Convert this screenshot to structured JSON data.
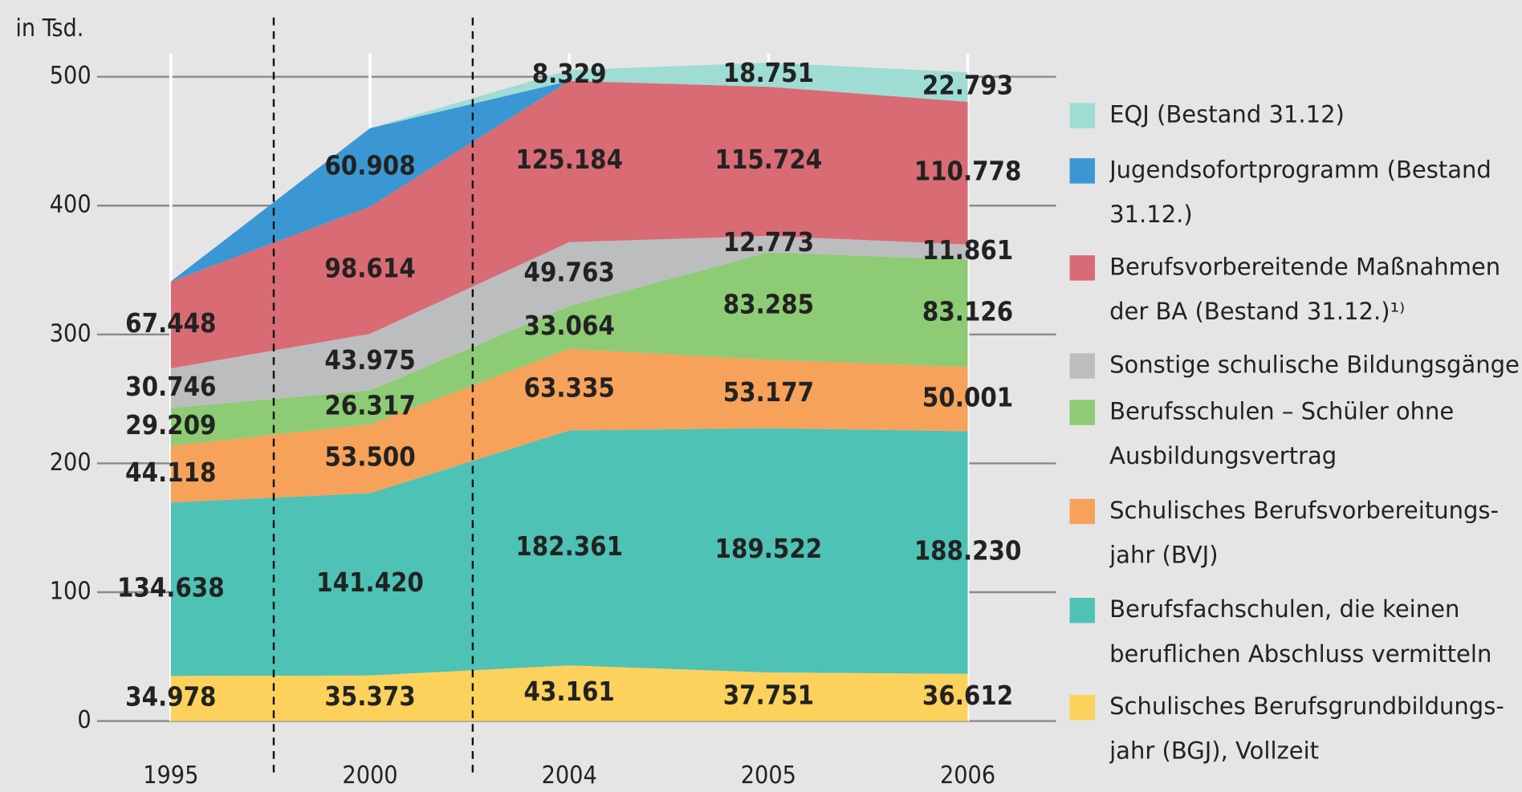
{
  "chart_data": {
    "type": "stacked_area",
    "y_axis_label": "in Tsd.",
    "categories": [
      "1995",
      "2000",
      "2004",
      "2005",
      "2006"
    ],
    "ylim": [
      0,
      500
    ],
    "yticks": [
      0,
      100,
      200,
      300,
      400,
      500
    ],
    "grid": true,
    "legend": "right",
    "series": [
      {
        "name": "Schulisches Berufsgrundbildungs-jahr (BGJ), Vollzeit",
        "color": "#fcd25c",
        "values": [
          34.978,
          35.373,
          43.161,
          37.751,
          36.612
        ],
        "value_labels": [
          "34.978",
          "35.373",
          "43.161",
          "37.751",
          "36.612"
        ]
      },
      {
        "name": "Berufsfachschulen, die keinen beruflichen Abschluss vermitteln",
        "color": "#4ec2b5",
        "values": [
          134.638,
          141.42,
          182.361,
          189.522,
          188.23
        ],
        "value_labels": [
          "134.638",
          "141.420",
          "182.361",
          "189.522",
          "188.230"
        ]
      },
      {
        "name": "Schulisches Berufsvorbereitungs-jahr (BVJ)",
        "color": "#f6a25a",
        "values": [
          44.118,
          53.5,
          63.335,
          53.177,
          50.001
        ],
        "value_labels": [
          "44.118",
          "53.500",
          "63.335",
          "53.177",
          "50.001"
        ]
      },
      {
        "name": "Berufsschulen – Schüler ohne Ausbildungsvertrag",
        "color": "#8dcb74",
        "values": [
          29.209,
          26.317,
          33.064,
          83.285,
          83.126
        ],
        "value_labels": [
          "29.209",
          "26.317",
          "33.064",
          "83.285",
          "83.126"
        ]
      },
      {
        "name": "Sonstige schulische Bildungsgänge",
        "color": "#bcbdbf",
        "values": [
          30.746,
          43.975,
          49.763,
          12.773,
          11.861
        ],
        "value_labels": [
          "30.746",
          "43.975",
          "49.763",
          "12.773",
          "11.861"
        ]
      },
      {
        "name": "Berufsvorbereitende Maßnahmen der BA (Bestand 31.12.)¹⁾",
        "color": "#d86b74",
        "values": [
          67.448,
          98.614,
          125.184,
          115.724,
          110.778
        ],
        "value_labels": [
          "67.448",
          "98.614",
          "125.184",
          "115.724",
          "110.778"
        ]
      },
      {
        "name": "Jugendsofortprogramm (Bestand 31.12.)",
        "color": "#3b97d3",
        "values": [
          0,
          60.908,
          0,
          null,
          null
        ],
        "value_labels": [
          null,
          "60.908",
          null,
          null,
          null
        ]
      },
      {
        "name": "EQJ (Bestand 31.12)",
        "color": "#9fdcd3",
        "values": [
          null,
          0,
          8.329,
          18.751,
          22.793
        ],
        "value_labels": [
          null,
          null,
          "8.329",
          "18.751",
          "22.793"
        ]
      }
    ]
  }
}
